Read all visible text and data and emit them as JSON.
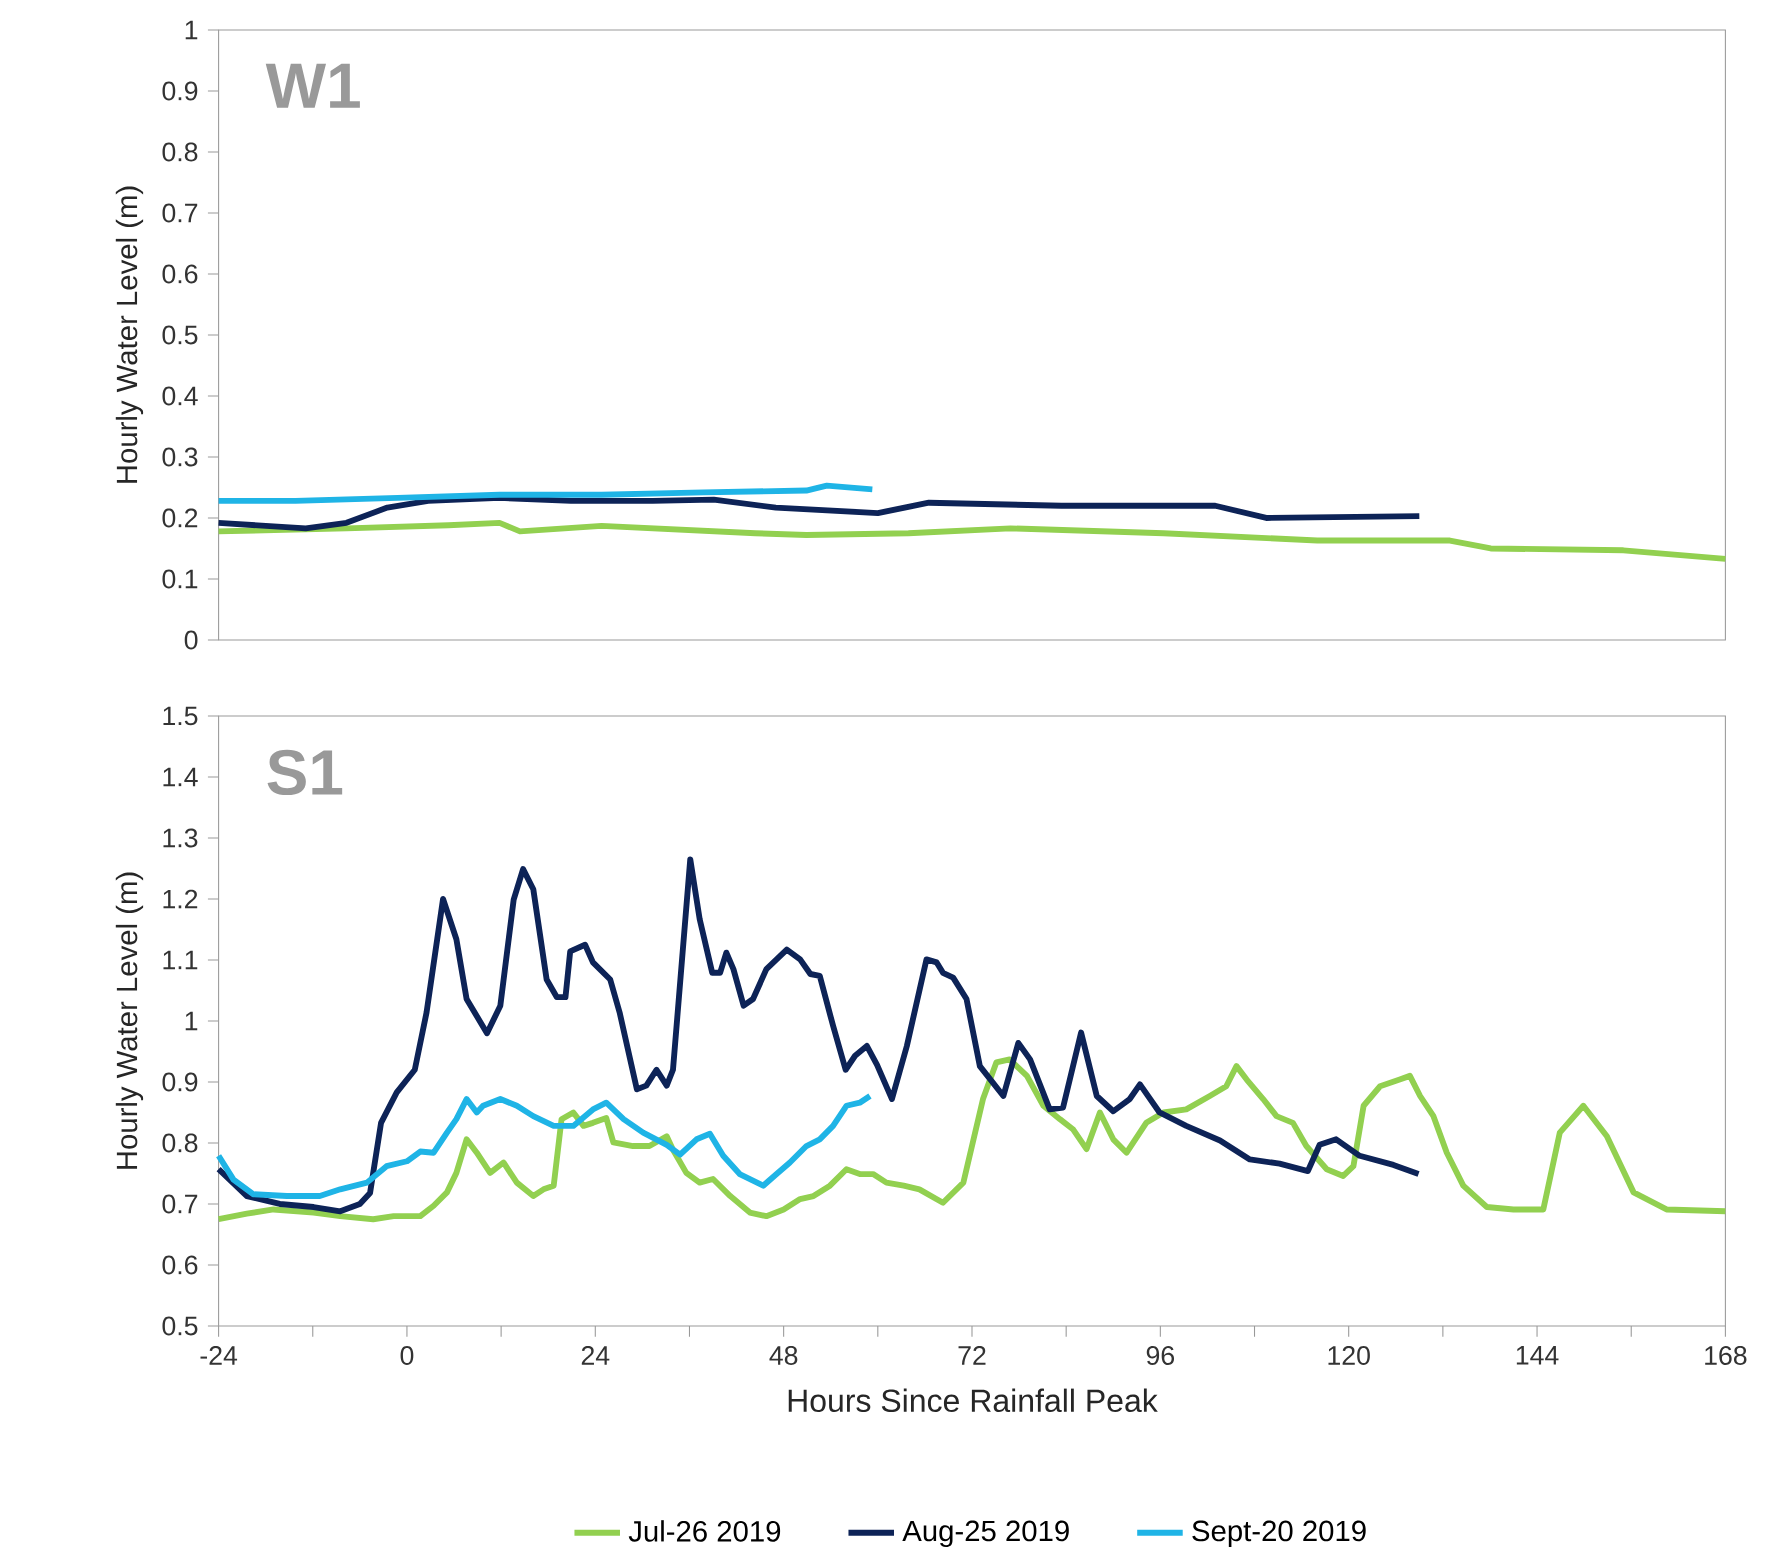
{
  "chart_data": [
    {
      "type": "line",
      "ylabel": "Hourly Water Level (m)",
      "annotations": [
        "W1"
      ],
      "xlim": [
        -24,
        168
      ],
      "ylim": [
        0,
        1
      ],
      "yticks": [
        0,
        0.1,
        0.2,
        0.3,
        0.4,
        0.5,
        0.6,
        0.7,
        0.8,
        0.9,
        1
      ],
      "tick_labels": "y",
      "series": [
        {
          "color": "#92d050",
          "x": [
            -24,
            -7.7,
            5.3,
            11.8,
            14.4,
            24.8,
            44.4,
            50.9,
            63.9,
            76.9,
            96.4,
            116,
            132.9,
            138.1,
            155,
            168
          ],
          "values": [
            0.178,
            0.183,
            0.188,
            0.192,
            0.178,
            0.187,
            0.175,
            0.172,
            0.175,
            0.183,
            0.175,
            0.163,
            0.163,
            0.15,
            0.147,
            0.133
          ]
        },
        {
          "color": "#0d2357",
          "x": [
            -24,
            -12.9,
            -7.7,
            -2.5,
            2.7,
            11.8,
            20.9,
            31.3,
            39.1,
            47,
            60,
            66.5,
            83.4,
            103,
            109.5,
            129
          ],
          "values": [
            0.192,
            0.183,
            0.192,
            0.217,
            0.228,
            0.233,
            0.228,
            0.228,
            0.23,
            0.217,
            0.208,
            0.225,
            0.22,
            0.22,
            0.2,
            0.203
          ]
        },
        {
          "color": "#1fb4e6",
          "x": [
            -24,
            -14.2,
            -1.2,
            11.8,
            24.8,
            37.8,
            50.9,
            53.5,
            59.3
          ],
          "values": [
            0.228,
            0.228,
            0.233,
            0.238,
            0.238,
            0.242,
            0.245,
            0.253,
            0.247
          ]
        }
      ]
    },
    {
      "type": "line",
      "xlabel": "Hours Since Rainfall  Peak",
      "ylabel": "Hourly Water Level (m)",
      "annotations": [
        "S1"
      ],
      "legend": "bottom",
      "xlim": [
        -24,
        168
      ],
      "ylim": [
        0.5,
        1.5
      ],
      "xticks": [
        -24,
        {
          "value": -12,
          "label": null
        },
        0,
        {
          "value": 12,
          "label": null
        },
        24,
        {
          "value": 36,
          "label": null
        },
        48,
        {
          "value": 60,
          "label": null
        },
        72,
        {
          "value": 84,
          "label": null
        },
        96,
        {
          "value": 108,
          "label": null
        },
        120,
        {
          "value": 132,
          "label": null
        },
        144,
        {
          "value": 156,
          "label": null
        },
        168
      ],
      "yticks": [
        0.5,
        0.6,
        0.7,
        0.8,
        0.9,
        1,
        1.1,
        1.2,
        1.3,
        1.4,
        1.5
      ],
      "series": [
        {
          "name": "Jul-26 2019",
          "color": "#92d050",
          "x": [
            -24,
            -20.4,
            -17,
            -11.9,
            -8.5,
            -4.3,
            -1.7,
            1.7,
            3.4,
            5.1,
            6.3,
            7.6,
            8.9,
            10.6,
            12.3,
            14,
            16.1,
            17.4,
            18.7,
            19.7,
            21.2,
            22.5,
            23.7,
            25.4,
            26.3,
            28.8,
            30.9,
            33.1,
            33.9,
            35.6,
            37.3,
            39,
            41.2,
            43.7,
            45.8,
            48,
            50.1,
            51.8,
            53.9,
            56,
            57.7,
            59.4,
            61.1,
            63.3,
            65.3,
            68.3,
            70.9,
            73.4,
            75.1,
            76.8,
            79,
            81.1,
            83.2,
            84.9,
            86.6,
            88.3,
            90,
            91.7,
            94.2,
            96.4,
            99.3,
            102.3,
            104.4,
            105.7,
            107,
            109.1,
            110.8,
            112.9,
            114.6,
            117.2,
            119.3,
            120.6,
            121.9,
            124,
            126.5,
            127.8,
            129.1,
            130.8,
            132.5,
            134.6,
            137.6,
            141,
            144.8,
            146.9,
            149.9,
            152.9,
            156.3,
            160.5,
            168
          ],
          "values": [
            0.675,
            0.684,
            0.691,
            0.686,
            0.68,
            0.675,
            0.68,
            0.68,
            0.697,
            0.719,
            0.751,
            0.806,
            0.784,
            0.751,
            0.768,
            0.735,
            0.713,
            0.724,
            0.73,
            0.839,
            0.85,
            0.828,
            0.833,
            0.841,
            0.801,
            0.795,
            0.795,
            0.811,
            0.789,
            0.751,
            0.735,
            0.741,
            0.713,
            0.686,
            0.68,
            0.691,
            0.708,
            0.713,
            0.73,
            0.757,
            0.749,
            0.749,
            0.735,
            0.73,
            0.724,
            0.702,
            0.735,
            0.872,
            0.932,
            0.937,
            0.91,
            0.861,
            0.839,
            0.822,
            0.79,
            0.85,
            0.806,
            0.784,
            0.833,
            0.85,
            0.855,
            0.877,
            0.893,
            0.926,
            0.904,
            0.872,
            0.844,
            0.833,
            0.795,
            0.757,
            0.746,
            0.762,
            0.861,
            0.893,
            0.904,
            0.91,
            0.877,
            0.844,
            0.784,
            0.73,
            0.695,
            0.691,
            0.691,
            0.817,
            0.861,
            0.811,
            0.719,
            0.691,
            0.688
          ]
        },
        {
          "name": "Aug-25 2019",
          "color": "#0d2357",
          "x": [
            -24,
            -20.4,
            -16.2,
            -11.9,
            -8.5,
            -6,
            -4.7,
            -3.3,
            -1.3,
            1,
            2.5,
            4.6,
            6.3,
            7.6,
            10.2,
            11.9,
            13.6,
            14.8,
            16.1,
            17.8,
            19.1,
            20.2,
            20.8,
            22.7,
            23.7,
            25.9,
            27.1,
            29.3,
            30.5,
            31.8,
            33.1,
            33.9,
            36.1,
            37.3,
            38.9,
            39.9,
            40.7,
            41.6,
            42.9,
            44.1,
            45.8,
            48.4,
            50.1,
            51.4,
            52.6,
            54.3,
            55.9,
            57.1,
            58.6,
            59.9,
            61.8,
            63.7,
            66.2,
            67.5,
            68.3,
            69.6,
            71.3,
            73,
            76,
            77.9,
            79.4,
            81.9,
            83.6,
            85.9,
            87.9,
            90,
            92.1,
            93.4,
            95.9,
            99.3,
            103.6,
            107.4,
            111.2,
            114.8,
            116.3,
            118.4,
            121.4,
            125.7,
            128.9
          ],
          "values": [
            0.757,
            0.713,
            0.7,
            0.695,
            0.688,
            0.7,
            0.718,
            0.833,
            0.883,
            0.92,
            1.014,
            1.2,
            1.134,
            1.036,
            0.98,
            1.025,
            1.199,
            1.249,
            1.216,
            1.068,
            1.039,
            1.039,
            1.114,
            1.125,
            1.096,
            1.068,
            1.014,
            0.888,
            0.894,
            0.92,
            0.894,
            0.92,
            1.265,
            1.167,
            1.079,
            1.079,
            1.112,
            1.085,
            1.025,
            1.036,
            1.085,
            1.117,
            1.101,
            1.077,
            1.074,
            0.992,
            0.92,
            0.943,
            0.959,
            0.928,
            0.872,
            0.959,
            1.101,
            1.096,
            1.079,
            1.071,
            1.036,
            0.926,
            0.877,
            0.964,
            0.937,
            0.855,
            0.858,
            0.981,
            0.877,
            0.852,
            0.872,
            0.896,
            0.85,
            0.828,
            0.804,
            0.773,
            0.766,
            0.754,
            0.797,
            0.806,
            0.779,
            0.764,
            0.749
          ]
        },
        {
          "name": "Sept-20 2019",
          "color": "#1fb4e6",
          "x": [
            -24,
            -22.1,
            -19.6,
            -15.3,
            -11.1,
            -8.5,
            -5.1,
            -2.6,
            0,
            1.7,
            3.4,
            5.1,
            6.3,
            7.6,
            8.9,
            9.7,
            11.9,
            14,
            16.1,
            18.7,
            21.2,
            23.7,
            25.4,
            27.6,
            30.1,
            33.1,
            34.8,
            36.9,
            38.6,
            40.3,
            42.4,
            45.4,
            47.1,
            48.8,
            50.9,
            52.6,
            54.3,
            56,
            57.7,
            59
          ],
          "values": [
            0.779,
            0.74,
            0.716,
            0.713,
            0.713,
            0.724,
            0.735,
            0.762,
            0.77,
            0.786,
            0.784,
            0.817,
            0.839,
            0.872,
            0.85,
            0.861,
            0.872,
            0.861,
            0.844,
            0.828,
            0.828,
            0.855,
            0.866,
            0.839,
            0.817,
            0.797,
            0.781,
            0.806,
            0.815,
            0.779,
            0.749,
            0.73,
            0.749,
            0.768,
            0.795,
            0.806,
            0.828,
            0.861,
            0.866,
            0.877
          ]
        }
      ]
    }
  ]
}
